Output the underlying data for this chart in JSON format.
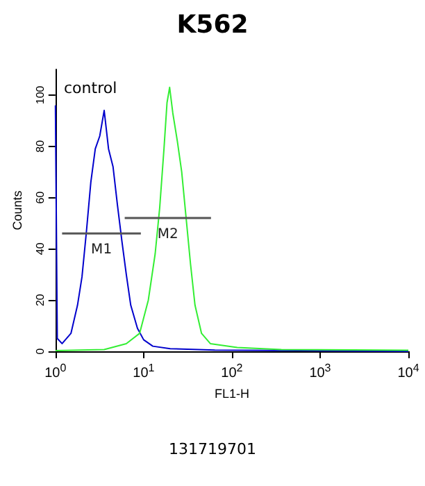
{
  "chart_data": {
    "type": "line",
    "title": "K562",
    "xlabel": "FL1-H",
    "ylabel": "Counts",
    "xlim": [
      1,
      10000
    ],
    "xticks": [
      {
        "value": 1,
        "label": "10$^{0}$"
      },
      {
        "value": 10,
        "label": "10$^{1}$"
      },
      {
        "value": 100,
        "label": "10$^{2}$"
      },
      {
        "value": 1000,
        "label": "10$^{3}$"
      },
      {
        "value": 10000,
        "label": "10$^{4}$"
      }
    ],
    "ylim": [
      0,
      110
    ],
    "yticks": [
      0,
      20,
      40,
      60,
      80,
      100
    ],
    "log": "x",
    "grid": false,
    "marker": "none",
    "series": [
      {
        "color": "#0000cc",
        "x": [
          1,
          1.05,
          1.19,
          1.5,
          1.78,
          2,
          2.25,
          2.52,
          2.83,
          3.18,
          3.57,
          4,
          4.5,
          5.05,
          5.67,
          6.36,
          7.14,
          8.5,
          10,
          12.7,
          20,
          64,
          10000
        ],
        "values": [
          96,
          5,
          3,
          7,
          18,
          29,
          47,
          66,
          79,
          84,
          94,
          79,
          72,
          57,
          43,
          30,
          18,
          9,
          4.5,
          2,
          1,
          0.5,
          0
        ]
      },
      {
        "color": "#33ee33",
        "x": [
          1,
          3.57,
          6.36,
          9,
          11.3,
          13.5,
          15.2,
          17,
          18.4,
          19.7,
          21.4,
          24.1,
          27,
          30.3,
          34,
          38.2,
          45.3,
          57,
          115,
          364,
          10000
        ],
        "values": [
          0.3,
          0.7,
          3,
          7,
          20,
          38,
          56,
          79,
          97,
          103,
          93,
          82,
          70,
          52,
          34,
          18,
          7,
          3,
          1.5,
          0.7,
          0.4
        ]
      },
      {
        "name": "M1",
        "color": "#555555",
        "x": [
          1.19,
          9.3
        ],
        "values": [
          46,
          46
        ]
      },
      {
        "name": "M2",
        "color": "#555555",
        "x": [
          6.1,
          58
        ],
        "values": [
          52,
          52
        ]
      }
    ],
    "annotations": [
      "control",
      "131719701"
    ]
  }
}
